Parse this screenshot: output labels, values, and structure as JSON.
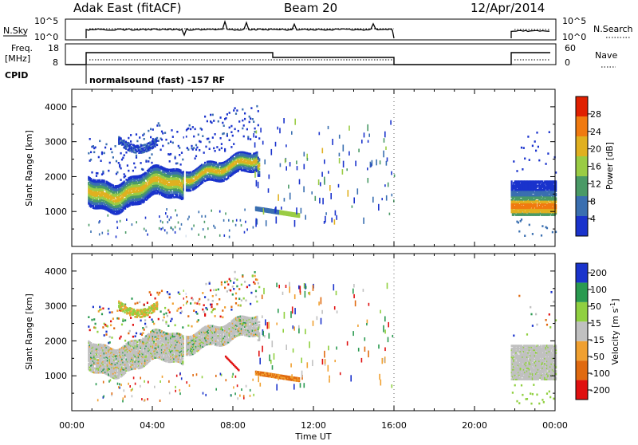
{
  "header": {
    "station": "Adak East (fitACF)",
    "beam": "Beam 20",
    "date": "12/Apr/2014"
  },
  "noise_panel": {
    "left_label": "N.Sky",
    "left_ticks": [
      "10^5",
      "10^0"
    ],
    "right_label": "N.Search",
    "right_ticks": [
      "10^5",
      "10^0"
    ]
  },
  "freq_panel": {
    "left_label_line1": "Freq.",
    "left_label_line2": "[MHz]",
    "left_ticks": [
      "18",
      "8"
    ],
    "right_label": "Nave",
    "right_ticks": [
      "60",
      "0"
    ]
  },
  "cpid": {
    "label": "CPID",
    "value": "normalsound (fast) -157 RF"
  },
  "colors": {
    "power": [
      "#1a33cc",
      "#3a6fb0",
      "#4a9a66",
      "#9acc44",
      "#e0b020",
      "#f07a10",
      "#e02000"
    ],
    "velocity": [
      "#e01010",
      "#e06a10",
      "#f0a030",
      "#c0c0c0",
      "#90d040",
      "#2a9a50",
      "#1a33cc"
    ]
  },
  "chart_data": [
    {
      "type": "heatmap",
      "title": "Power",
      "ylabel": "Slant Range [km]",
      "xlabel": "Time UT",
      "xlim": [
        "00:00",
        "24:00"
      ],
      "ylim": [
        0,
        4500
      ],
      "x_ticks": [
        "00:00",
        "04:00",
        "08:00",
        "12:00",
        "16:00",
        "20:00",
        "00:00"
      ],
      "y_ticks": [
        1000,
        2000,
        3000,
        4000
      ],
      "colorbar": {
        "label": "Power [dB]",
        "ticks": [
          4,
          8,
          12,
          16,
          20,
          24,
          28
        ],
        "range": [
          0,
          32
        ]
      }
    },
    {
      "type": "heatmap",
      "title": "Velocity",
      "ylabel": "Slant Range [km]",
      "xlabel": "Time UT",
      "xlim": [
        "00:00",
        "24:00"
      ],
      "ylim": [
        0,
        4500
      ],
      "x_ticks": [
        "00:00",
        "04:00",
        "08:00",
        "12:00",
        "16:00",
        "20:00",
        "00:00"
      ],
      "y_ticks": [
        1000,
        2000,
        3000,
        4000
      ],
      "colorbar": {
        "label": "Velocity [m s^-1]",
        "ticks": [
          200,
          100,
          50,
          15,
          -15,
          -50,
          -100,
          -200
        ]
      }
    }
  ]
}
